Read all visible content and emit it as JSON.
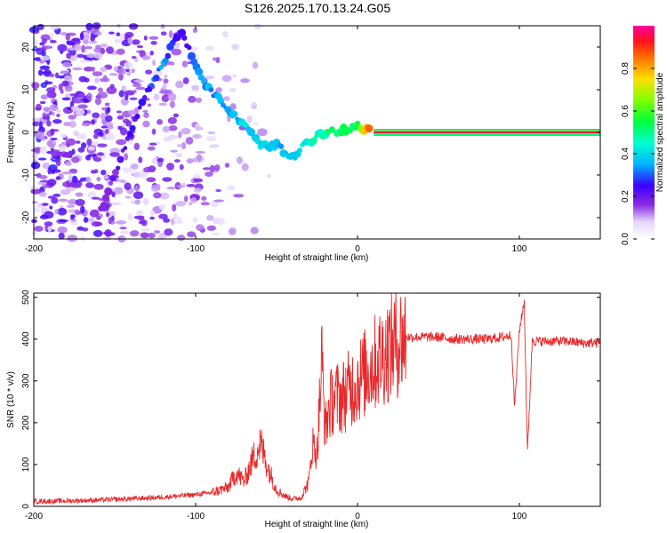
{
  "title": "S126.2025.170.13.24.G05",
  "chart_data": [
    {
      "type": "heatmap",
      "xlabel": "Height of straight line (km)",
      "ylabel": "Frequency (Hz)",
      "xlim": [
        -200,
        150
      ],
      "ylim": [
        -25,
        25
      ],
      "xticks": [
        "-200",
        "-100",
        "0",
        "100"
      ],
      "xtick_values": [
        -200,
        -100,
        0,
        100
      ],
      "yticks": [
        "-20",
        "-10",
        "0",
        "10",
        "20"
      ],
      "ytick_values": [
        -20,
        -10,
        0,
        10,
        20
      ],
      "colorbar": {
        "label": "Normalized spectral amplitude",
        "range": [
          0,
          1
        ],
        "ticks": [
          "0.0",
          "0.2",
          "0.4",
          "0.6",
          "0.8"
        ],
        "tick_values": [
          0.0,
          0.2,
          0.4,
          0.6,
          0.8
        ]
      },
      "ridge": [
        {
          "x": -160,
          "y": -20,
          "a": 0.12
        },
        {
          "x": -130,
          "y": 10,
          "a": 0.22
        },
        {
          "x": -120,
          "y": 16,
          "a": 0.3
        },
        {
          "x": -110,
          "y": 24,
          "a": 0.15
        },
        {
          "x": -95,
          "y": 12,
          "a": 0.3
        },
        {
          "x": -80,
          "y": 5,
          "a": 0.3
        },
        {
          "x": -70,
          "y": 2,
          "a": 0.35
        },
        {
          "x": -60,
          "y": -3,
          "a": 0.35
        },
        {
          "x": -50,
          "y": -3,
          "a": 0.3
        },
        {
          "x": -40,
          "y": -6,
          "a": 0.35
        },
        {
          "x": -30,
          "y": -2,
          "a": 0.4
        },
        {
          "x": -20,
          "y": 0,
          "a": 0.45
        },
        {
          "x": -10,
          "y": 0.5,
          "a": 0.5
        },
        {
          "x": 0,
          "y": 1.5,
          "a": 0.5
        },
        {
          "x": 10,
          "y": 0,
          "a": 1.0
        },
        {
          "x": 150,
          "y": 0,
          "a": 1.0
        }
      ]
    },
    {
      "type": "line",
      "xlabel": "Height of straight line (km)",
      "ylabel": "SNR (10 * v/v)",
      "xlim": [
        -200,
        150
      ],
      "ylim": [
        0,
        510
      ],
      "xticks": [
        "-200",
        "-100",
        "0",
        "100"
      ],
      "xtick_values": [
        -200,
        -100,
        0,
        100
      ],
      "yticks": [
        "0",
        "100",
        "200",
        "300",
        "400",
        "500"
      ],
      "ytick_values": [
        0,
        100,
        200,
        300,
        400,
        500
      ],
      "color": "#e8282a",
      "series": [
        {
          "x": [
            -200,
            -180,
            -160,
            -140,
            -120,
            -100,
            -90,
            -80,
            -75,
            -70,
            -65,
            -60,
            -55,
            -50,
            -45,
            -40,
            -35,
            -30,
            -28,
            -25,
            -22,
            -20,
            -18,
            -15,
            -10,
            -5,
            0,
            5,
            10,
            15,
            20,
            25,
            30,
            40,
            50,
            60,
            70,
            80,
            90,
            95,
            97,
            100,
            103,
            105,
            108,
            110,
            120,
            130,
            140,
            150
          ],
          "y": [
            12,
            13,
            15,
            18,
            22,
            28,
            33,
            45,
            80,
            60,
            110,
            150,
            90,
            40,
            25,
            18,
            20,
            60,
            150,
            130,
            350,
            180,
            230,
            260,
            260,
            280,
            300,
            320,
            340,
            360,
            380,
            395,
            405,
            405,
            405,
            400,
            400,
            400,
            405,
            410,
            240,
            420,
            490,
            130,
            400,
            395,
            395,
            395,
            390,
            392
          ]
        }
      ]
    }
  ]
}
